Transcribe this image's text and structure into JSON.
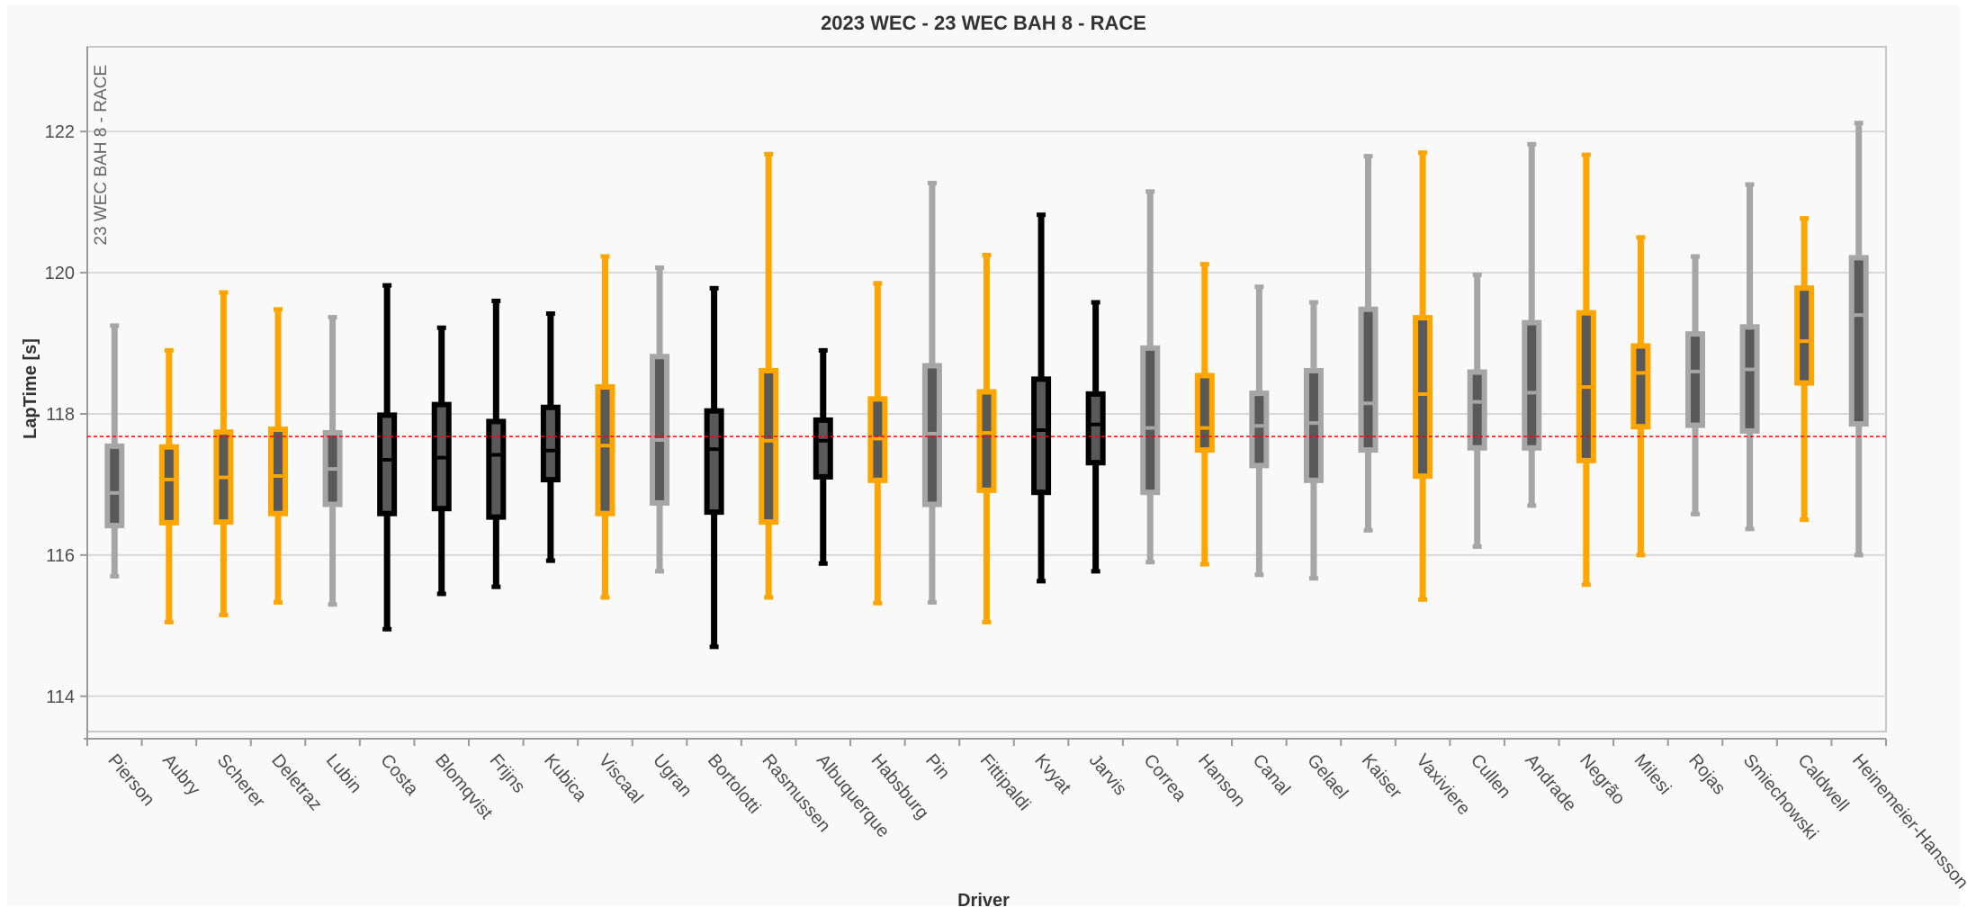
{
  "chart_data": {
    "type": "boxplot",
    "title": "2023 WEC - 23 WEC BAH 8 - RACE",
    "session_label": "23 WEC BAH 8 - RACE",
    "xlabel": "Driver",
    "ylabel": "LapTime [s]",
    "ylim": [
      113.5,
      123.2
    ],
    "yticks": [
      114,
      116,
      118,
      120,
      122
    ],
    "reference_line": 117.68,
    "grid": true,
    "colors": {
      "gray": "#a6a6a6",
      "orange": "#ffa500",
      "black": "#000000",
      "inner": "#595959",
      "reference": "#ff0000"
    },
    "categories": [
      "Pierson",
      "Aubry",
      "Scherer",
      "Deletraz",
      "Lubin",
      "Costa",
      "Blomqvist",
      "Frijns",
      "Kubica",
      "Viscaal",
      "Ugran",
      "Bortolotti",
      "Rasmussen",
      "Albuquerque",
      "Habsburg",
      "Pin",
      "Fittipaldi",
      "Kvyat",
      "Jarvis",
      "Correa",
      "Hanson",
      "Canal",
      "Gelael",
      "Kaiser",
      "Vaxiviere",
      "Cullen",
      "Andrade",
      "Negrão",
      "Milesi",
      "Rojas",
      "Smiechowski",
      "Caldwell",
      "Heinemeier-Hansson"
    ],
    "boxes": [
      {
        "driver": "Pierson",
        "color": "gray",
        "min": 115.7,
        "q1": 116.38,
        "median": 116.88,
        "q3": 117.58,
        "max": 119.25
      },
      {
        "driver": "Aubry",
        "color": "orange",
        "min": 115.05,
        "q1": 116.42,
        "median": 117.07,
        "q3": 117.57,
        "max": 118.9
      },
      {
        "driver": "Scherer",
        "color": "orange",
        "min": 115.15,
        "q1": 116.43,
        "median": 117.1,
        "q3": 117.78,
        "max": 119.72
      },
      {
        "driver": "Deletraz",
        "color": "orange",
        "min": 115.33,
        "q1": 116.55,
        "median": 117.12,
        "q3": 117.82,
        "max": 119.48
      },
      {
        "driver": "Lubin",
        "color": "gray",
        "min": 115.3,
        "q1": 116.68,
        "median": 117.22,
        "q3": 117.77,
        "max": 119.37
      },
      {
        "driver": "Costa",
        "color": "black",
        "min": 114.95,
        "q1": 116.55,
        "median": 117.35,
        "q3": 118.02,
        "max": 119.82
      },
      {
        "driver": "Blomqvist",
        "color": "black",
        "min": 115.45,
        "q1": 116.62,
        "median": 117.38,
        "q3": 118.17,
        "max": 119.22
      },
      {
        "driver": "Frijns",
        "color": "black",
        "min": 115.55,
        "q1": 116.5,
        "median": 117.42,
        "q3": 117.93,
        "max": 119.6
      },
      {
        "driver": "Kubica",
        "color": "black",
        "min": 115.92,
        "q1": 117.03,
        "median": 117.48,
        "q3": 118.13,
        "max": 119.42
      },
      {
        "driver": "Viscaal",
        "color": "orange",
        "min": 115.4,
        "q1": 116.55,
        "median": 117.55,
        "q3": 118.42,
        "max": 120.23
      },
      {
        "driver": "Ugran",
        "color": "gray",
        "min": 115.77,
        "q1": 116.7,
        "median": 117.63,
        "q3": 118.85,
        "max": 120.07
      },
      {
        "driver": "Bortolotti",
        "color": "black",
        "min": 114.7,
        "q1": 116.57,
        "median": 117.5,
        "q3": 118.08,
        "max": 119.78
      },
      {
        "driver": "Rasmussen",
        "color": "orange",
        "min": 115.4,
        "q1": 116.43,
        "median": 117.62,
        "q3": 118.65,
        "max": 121.68
      },
      {
        "driver": "Albuquerque",
        "color": "black",
        "min": 115.88,
        "q1": 117.07,
        "median": 117.62,
        "q3": 117.95,
        "max": 118.9
      },
      {
        "driver": "Habsburg",
        "color": "orange",
        "min": 115.32,
        "q1": 117.02,
        "median": 117.65,
        "q3": 118.25,
        "max": 119.85
      },
      {
        "driver": "Pin",
        "color": "gray",
        "min": 115.33,
        "q1": 116.68,
        "median": 117.72,
        "q3": 118.72,
        "max": 121.27
      },
      {
        "driver": "Fittipaldi",
        "color": "orange",
        "min": 115.05,
        "q1": 116.88,
        "median": 117.73,
        "q3": 118.35,
        "max": 120.25
      },
      {
        "driver": "Kvyat",
        "color": "black",
        "min": 115.63,
        "q1": 116.85,
        "median": 117.77,
        "q3": 118.53,
        "max": 120.82
      },
      {
        "driver": "Jarvis",
        "color": "black",
        "min": 115.77,
        "q1": 117.27,
        "median": 117.85,
        "q3": 118.32,
        "max": 119.58
      },
      {
        "driver": "Correa",
        "color": "gray",
        "min": 115.9,
        "q1": 116.85,
        "median": 117.8,
        "q3": 118.97,
        "max": 121.15
      },
      {
        "driver": "Hanson",
        "color": "orange",
        "min": 115.87,
        "q1": 117.45,
        "median": 117.8,
        "q3": 118.58,
        "max": 120.12
      },
      {
        "driver": "Canal",
        "color": "gray",
        "min": 115.72,
        "q1": 117.23,
        "median": 117.83,
        "q3": 118.33,
        "max": 119.8
      },
      {
        "driver": "Gelael",
        "color": "gray",
        "min": 115.67,
        "q1": 117.02,
        "median": 117.87,
        "q3": 118.65,
        "max": 119.58
      },
      {
        "driver": "Kaiser",
        "color": "gray",
        "min": 116.35,
        "q1": 117.45,
        "median": 118.15,
        "q3": 119.52,
        "max": 121.65
      },
      {
        "driver": "Vaxiviere",
        "color": "orange",
        "min": 115.37,
        "q1": 117.08,
        "median": 118.28,
        "q3": 119.4,
        "max": 121.7
      },
      {
        "driver": "Cullen",
        "color": "gray",
        "min": 116.12,
        "q1": 117.48,
        "median": 118.17,
        "q3": 118.63,
        "max": 119.97
      },
      {
        "driver": "Andrade",
        "color": "gray",
        "min": 116.7,
        "q1": 117.48,
        "median": 118.3,
        "q3": 119.33,
        "max": 121.82
      },
      {
        "driver": "Negrão",
        "color": "orange",
        "min": 115.58,
        "q1": 117.3,
        "median": 118.38,
        "q3": 119.47,
        "max": 121.67
      },
      {
        "driver": "Milesi",
        "color": "orange",
        "min": 116.0,
        "q1": 117.78,
        "median": 118.58,
        "q3": 119.0,
        "max": 120.5
      },
      {
        "driver": "Rojas",
        "color": "gray",
        "min": 116.58,
        "q1": 117.8,
        "median": 118.6,
        "q3": 119.17,
        "max": 120.23
      },
      {
        "driver": "Smiechowski",
        "color": "gray",
        "min": 116.37,
        "q1": 117.72,
        "median": 118.63,
        "q3": 119.27,
        "max": 121.25
      },
      {
        "driver": "Caldwell",
        "color": "orange",
        "min": 116.5,
        "q1": 118.4,
        "median": 119.03,
        "q3": 119.82,
        "max": 120.77
      },
      {
        "driver": "Heinemeier-Hansson",
        "color": "gray",
        "min": 116.0,
        "q1": 117.82,
        "median": 119.4,
        "q3": 120.25,
        "max": 122.12
      }
    ]
  }
}
